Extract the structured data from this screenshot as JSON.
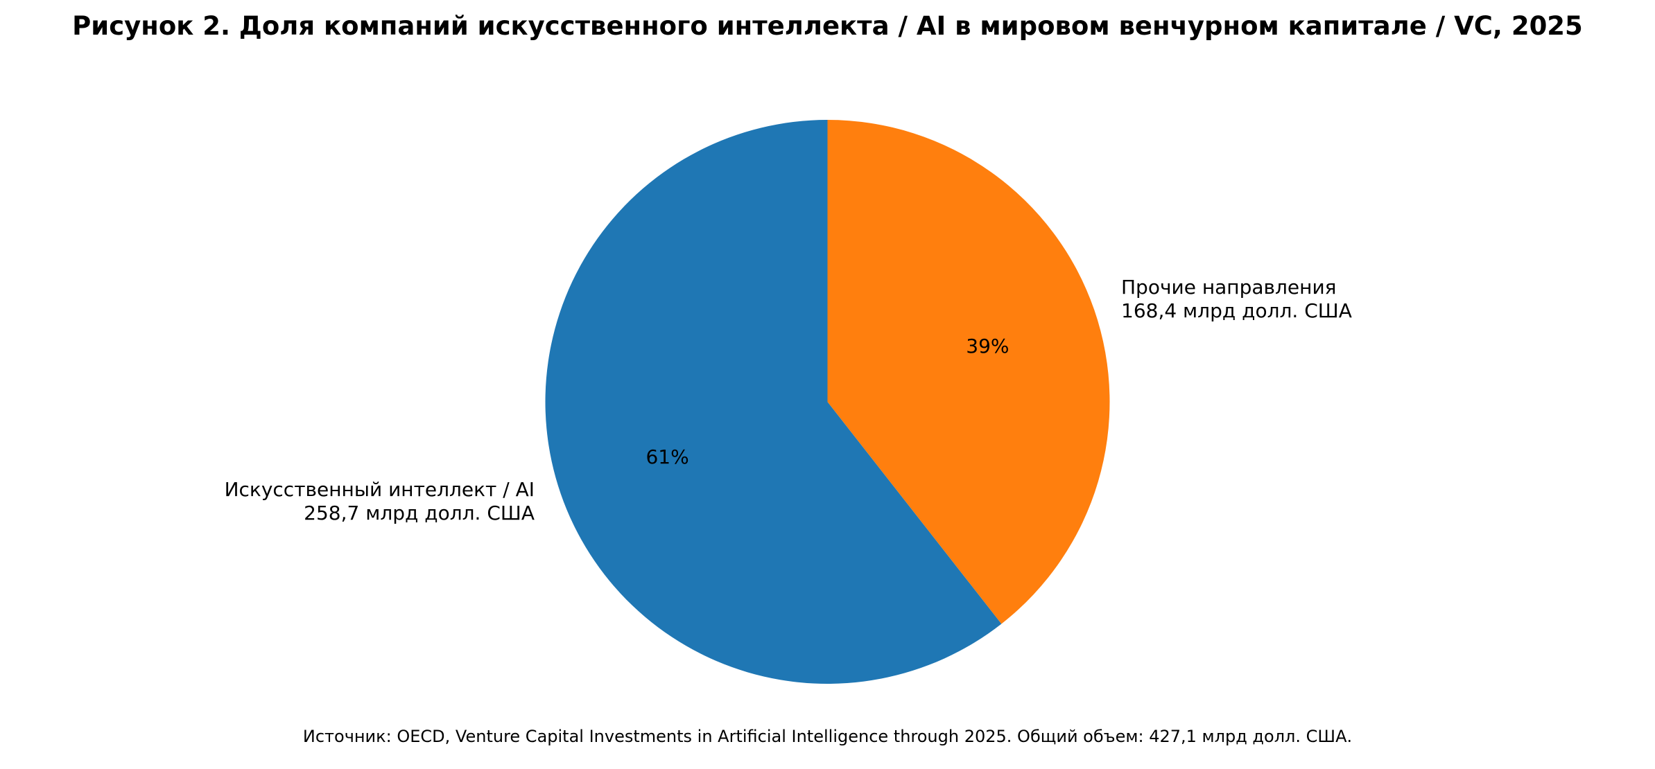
{
  "chart_data": {
    "type": "pie",
    "title": "Рисунок 2. Доля компаний искусственного интеллекта / AI в мировом венчурном капитале / VC, 2025",
    "slices": [
      {
        "name": "Искусственный интеллект / AI",
        "value_text": "258,7 млрд долл. США",
        "value": 258.7,
        "percent_text": "61%",
        "color": "#1f77b4"
      },
      {
        "name": "Прочие направления",
        "value_text": "168,4 млрд долл. США",
        "value": 168.4,
        "percent_text": "39%",
        "color": "#ff7f0e"
      }
    ],
    "start_angle_deg": 90,
    "direction": "counterclockwise",
    "legend": "none",
    "source": "Источник: OECD, Venture Capital Investments in Artificial Intelligence through 2025. Общий объем: 427,1 млрд долл. США."
  }
}
